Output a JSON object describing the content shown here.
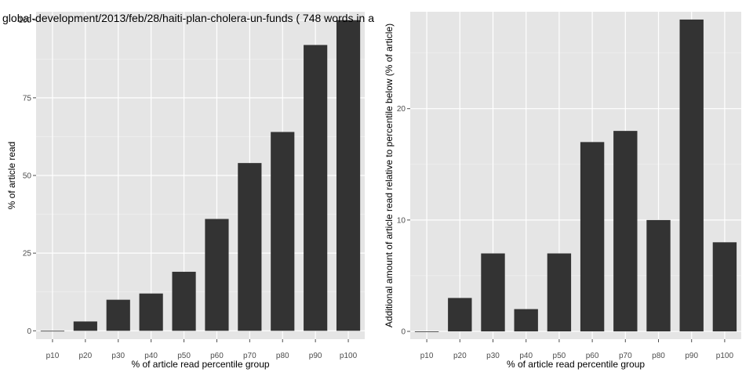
{
  "colors": {
    "panel": "#e5e5e5",
    "grid_major": "#ffffff",
    "grid_minor": "#f2f2f2",
    "bar": "#333333",
    "tick_text": "#4d4d4d"
  },
  "chart_data": [
    {
      "type": "bar",
      "title": "global-development/2013/feb/28/haiti-plan-cholera-un-funds ( 748 words in a",
      "xlabel": "% of article read percentile group",
      "ylabel": "% of article read",
      "categories": [
        "p10",
        "p20",
        "p30",
        "p40",
        "p50",
        "p60",
        "p70",
        "p80",
        "p90",
        "p100"
      ],
      "values": [
        0,
        3,
        10,
        12,
        19,
        36,
        54,
        64,
        92,
        100
      ],
      "yticks": [
        0,
        25,
        50,
        75,
        100
      ],
      "ytick_labels": [
        "0",
        "25",
        "50",
        "75",
        "100"
      ],
      "ylim": [
        -2.7,
        102.7
      ],
      "grid": true
    },
    {
      "type": "bar",
      "title": "",
      "xlabel": "% of article read percentile group",
      "ylabel": "Additional amount of article read relative to percentile below (% of article)",
      "categories": [
        "p10",
        "p20",
        "p30",
        "p40",
        "p50",
        "p60",
        "p70",
        "p80",
        "p90",
        "p100"
      ],
      "values": [
        0,
        3,
        7,
        2,
        7,
        17,
        18,
        10,
        28,
        8
      ],
      "yticks": [
        0,
        10,
        20
      ],
      "ytick_labels": [
        "0",
        "10",
        "20"
      ],
      "ylim": [
        -0.7,
        28.7
      ],
      "grid": true
    }
  ]
}
